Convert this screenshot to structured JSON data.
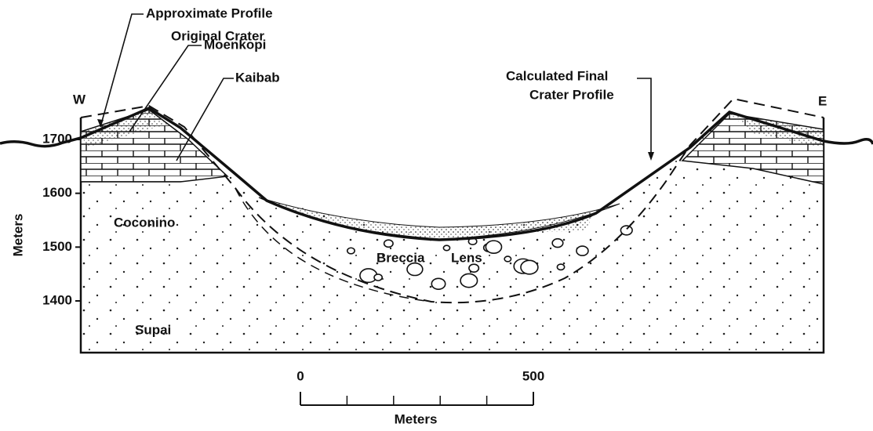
{
  "labels": {
    "original": [
      "Approximate Profile",
      "Original Crater"
    ],
    "final": [
      "Calculated Final",
      "Crater Profile"
    ],
    "west": "W",
    "east": "E",
    "moenkopi": "Moenkopi",
    "kaibab": "Kaibab",
    "coconino": "Coconino",
    "breccia": "Breccia",
    "lens": "Lens",
    "supai": "Supai"
  },
  "elevation_axis": {
    "label": "Meters",
    "ticks": [
      1700,
      1600,
      1500,
      1400
    ]
  },
  "scale_bar": {
    "ticks": [
      0,
      500
    ],
    "label": "Meters"
  }
}
